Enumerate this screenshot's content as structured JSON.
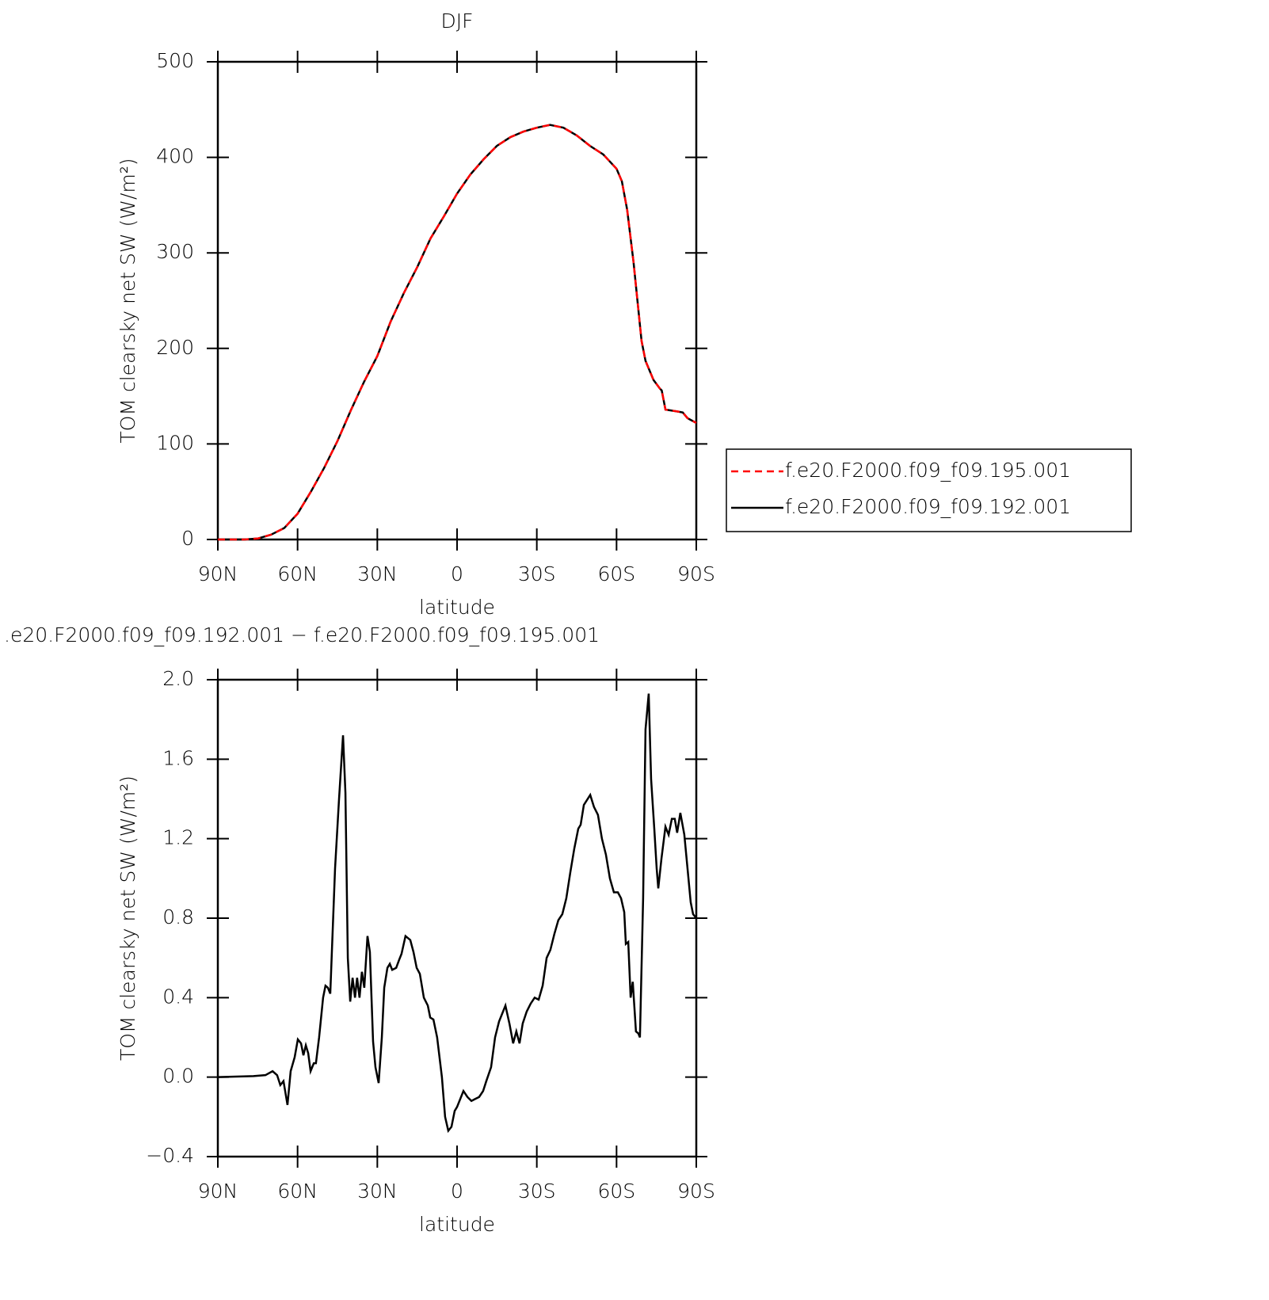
{
  "chart_data": [
    {
      "type": "line",
      "title": "DJF",
      "xlabel": "latitude",
      "ylabel": "TOM clearsky net SW (W/m²)",
      "x": [
        90,
        80,
        75,
        70,
        65,
        60,
        55,
        50,
        45,
        40,
        35,
        30,
        25,
        20,
        15,
        10,
        5,
        0,
        -5,
        -10,
        -15,
        -20,
        -25,
        -30,
        -35,
        -40,
        -45,
        -50,
        -55,
        -60,
        -62,
        -64,
        -66.4,
        -69.4,
        -70.9,
        -73.9,
        -76.3,
        -77,
        -78.4,
        -82.8,
        -84.9,
        -86.7,
        -90
      ],
      "series": [
        {
          "name": "f.e20.F2000.f09_f09.195.001",
          "color": "#ff0000",
          "line_style": "dashed",
          "values": [
            0,
            0,
            1,
            5,
            12,
            27,
            50,
            75,
            103,
            135,
            165,
            192,
            228,
            258,
            285,
            315,
            338,
            362,
            382,
            398,
            412,
            421,
            427,
            431,
            434,
            431,
            423,
            412,
            403,
            388,
            375,
            345,
            290,
            208,
            187,
            167,
            158,
            156,
            136,
            134,
            133,
            127,
            122
          ]
        },
        {
          "name": "f.e20.F2000.f09_f09.192.001",
          "color": "#000000",
          "line_style": "solid",
          "values": [
            0,
            0,
            1,
            5,
            12,
            27,
            50,
            75,
            103,
            135,
            165,
            192,
            228,
            258,
            285,
            315,
            338,
            362,
            382,
            398,
            412,
            421,
            427,
            431,
            434,
            431,
            423,
            412,
            403,
            388,
            375,
            345,
            290,
            208,
            187,
            167,
            158,
            156,
            136,
            134,
            133,
            127,
            122
          ]
        }
      ],
      "xlim": [
        90,
        -90
      ],
      "xticks": [
        {
          "value": 90,
          "label": "90N"
        },
        {
          "value": 60,
          "label": "60N"
        },
        {
          "value": 30,
          "label": "30N"
        },
        0,
        {
          "value": -30,
          "label": "30S"
        },
        {
          "value": -60,
          "label": "60S"
        },
        {
          "value": -90,
          "label": "90S"
        }
      ],
      "ylim": [
        0,
        500
      ],
      "yticks": [
        0,
        100,
        200,
        300,
        400,
        500
      ],
      "legend": "outside-right"
    },
    {
      "type": "line",
      "title": ".e20.F2000.f09_f09.192.001 − f.e20.F2000.f09_f09.195.001",
      "xlabel": "latitude",
      "ylabel": "TOM clearsky net SW (W/m²)",
      "x": [
        90,
        76.6,
        72.1,
        69.4,
        67.7,
        66.5,
        65.3,
        63.8,
        62.6,
        61.1,
        59.9,
        58.7,
        57.8,
        56.9,
        56.0,
        55.1,
        53.9,
        53.1,
        51.9,
        50.4,
        49.5,
        48.6,
        47.7,
        45.9,
        44.4,
        42.9,
        42.0,
        41.1,
        40.2,
        39.3,
        38.4,
        37.6,
        36.7,
        35.8,
        34.9,
        33.7,
        32.8,
        31.6,
        30.7,
        29.5,
        28.3,
        27.4,
        26.2,
        25.3,
        24.4,
        22.9,
        21.8,
        20.9,
        19.4,
        17.6,
        16.4,
        15.2,
        14.0,
        12.5,
        11.0,
        10.1,
        8.9,
        7.5,
        5.7,
        4.5,
        3.3,
        2.1,
        0.9,
        0,
        -2.4,
        -3.9,
        -5.4,
        -6.8,
        -8.3,
        -9.8,
        -11.0,
        -12.8,
        -14.3,
        -15.8,
        -18.2,
        -19.7,
        -21.1,
        -22.3,
        -23.5,
        -24.7,
        -26.2,
        -27.7,
        -29.2,
        -30.7,
        -32.2,
        -33.7,
        -35.1,
        -36.6,
        -38.1,
        -39.6,
        -41.1,
        -42.6,
        -44.1,
        -45.6,
        -46.5,
        -47.7,
        -50.1,
        -51.5,
        -53.0,
        -54.5,
        -56.0,
        -57.5,
        -59.0,
        -60.5,
        -61.7,
        -62.9,
        -63.5,
        -64.4,
        -65.3,
        -66.1,
        -67.3,
        -68.2,
        -68.8,
        -70.0,
        -70.9,
        -72.1,
        -73.0,
        -74.2,
        -75.1,
        -75.7,
        -76.9,
        -78.4,
        -79.6,
        -80.8,
        -81.9,
        -82.8,
        -84.0,
        -85.5,
        -86.7,
        -87.9,
        -88.8,
        -90
      ],
      "values": [
        0,
        0.005,
        0.01,
        0.03,
        0.01,
        -0.04,
        -0.02,
        -0.14,
        0.03,
        0.1,
        0.19,
        0.17,
        0.11,
        0.16,
        0.12,
        0.03,
        0.07,
        0.07,
        0.2,
        0.4,
        0.46,
        0.45,
        0.42,
        1.05,
        1.4,
        1.72,
        1.43,
        0.6,
        0.38,
        0.5,
        0.4,
        0.5,
        0.4,
        0.53,
        0.45,
        0.71,
        0.63,
        0.18,
        0.05,
        -0.03,
        0.2,
        0.45,
        0.55,
        0.57,
        0.54,
        0.55,
        0.59,
        0.62,
        0.71,
        0.69,
        0.63,
        0.55,
        0.52,
        0.4,
        0.36,
        0.3,
        0.29,
        0.2,
        0.0,
        -0.2,
        -0.27,
        -0.25,
        -0.17,
        -0.15,
        -0.07,
        -0.1,
        -0.12,
        -0.11,
        -0.1,
        -0.07,
        -0.02,
        0.05,
        0.2,
        0.28,
        0.36,
        0.27,
        0.17,
        0.23,
        0.17,
        0.27,
        0.33,
        0.37,
        0.4,
        0.39,
        0.46,
        0.6,
        0.64,
        0.72,
        0.79,
        0.82,
        0.9,
        1.03,
        1.15,
        1.25,
        1.27,
        1.37,
        1.42,
        1.36,
        1.32,
        1.2,
        1.12,
        1.0,
        0.93,
        0.93,
        0.9,
        0.83,
        0.67,
        0.68,
        0.4,
        0.48,
        0.23,
        0.22,
        0.2,
        0.9,
        1.75,
        1.93,
        1.5,
        1.25,
        1.05,
        0.95,
        1.1,
        1.26,
        1.22,
        1.3,
        1.3,
        1.23,
        1.33,
        1.22,
        1.05,
        0.88,
        0.82,
        0.8
      ],
      "color": "#000000",
      "xlim": [
        90,
        -90
      ],
      "xticks": [
        {
          "value": 90,
          "label": "90N"
        },
        {
          "value": 60,
          "label": "60N"
        },
        {
          "value": 30,
          "label": "30N"
        },
        0,
        {
          "value": -30,
          "label": "30S"
        },
        {
          "value": -60,
          "label": "60S"
        },
        {
          "value": -90,
          "label": "90S"
        }
      ],
      "ylim": [
        -0.4,
        2.0
      ],
      "yticks": [
        {
          "value": -0.4,
          "label": "−0.4"
        },
        {
          "value": 0,
          "label": "0.0"
        },
        0.4,
        0.8,
        1.2,
        1.6,
        {
          "value": 2.0,
          "label": "2.0"
        }
      ]
    }
  ]
}
